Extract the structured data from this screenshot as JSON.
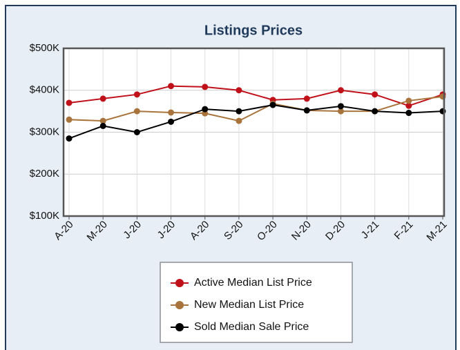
{
  "chart_data": {
    "type": "line",
    "title": "Listings Prices",
    "categories": [
      "A-20",
      "M-20",
      "J-20",
      "J-20",
      "A-20",
      "S-20",
      "O-20",
      "N-20",
      "D-20",
      "J-21",
      "F-21",
      "M-21"
    ],
    "series": [
      {
        "name": "Active Median List Price",
        "color": "#c0101a",
        "values": [
          370000,
          380000,
          390000,
          410000,
          408000,
          400000,
          377000,
          380000,
          400000,
          390000,
          363000,
          390000
        ]
      },
      {
        "name": "New Median List Price",
        "color": "#a8743c",
        "values": [
          330000,
          327000,
          350000,
          347000,
          345000,
          327000,
          368000,
          352000,
          350000,
          350000,
          375000,
          385000
        ]
      },
      {
        "name": "Sold Median Sale Price",
        "color": "#000000",
        "values": [
          285000,
          315000,
          300000,
          325000,
          355000,
          350000,
          365000,
          352000,
          362000,
          350000,
          346000,
          350000
        ]
      }
    ],
    "ylim": [
      100000,
      500000
    ],
    "yticks": [
      {
        "value": 100000,
        "label": "$100K"
      },
      {
        "value": 200000,
        "label": "$200K"
      },
      {
        "value": 300000,
        "label": "$300K"
      },
      {
        "value": 400000,
        "label": "$400K"
      },
      {
        "value": 500000,
        "label": "$500K"
      }
    ],
    "grid": true
  }
}
